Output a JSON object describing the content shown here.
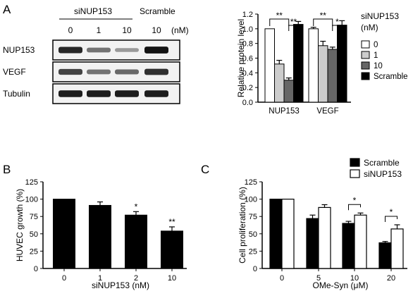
{
  "figure": {
    "panel_labels": [
      "A",
      "B",
      "C"
    ]
  },
  "blot": {
    "group_siNUP153": "siNUP153",
    "group_scramble": "Scramble",
    "lane_labels": [
      "0",
      "1",
      "10",
      "10"
    ],
    "unit": "(nM)",
    "rows": [
      {
        "label": "NUP153",
        "intensities": [
          0.85,
          0.45,
          0.25,
          0.95
        ]
      },
      {
        "label": "VEGF",
        "intensities": [
          0.7,
          0.45,
          0.5,
          0.8
        ]
      },
      {
        "label": "Tubulin",
        "intensities": [
          0.9,
          0.9,
          0.9,
          0.9
        ]
      }
    ]
  },
  "chart_data": [
    {
      "panel": "A",
      "type": "bar",
      "title": "",
      "xlabel": "",
      "ylabel": "Relative protein level",
      "categories": [
        "NUP153",
        "VEGF"
      ],
      "ylim": [
        0,
        1.2
      ],
      "yticks": [
        "0.0",
        "0.2",
        "0.4",
        "0.6",
        "0.8",
        "1.0",
        "1.2"
      ],
      "legend_title": "siNUP153\n(nM)",
      "legend_position": "right",
      "series": [
        {
          "name": "0",
          "color": "#ffffff",
          "values": [
            1.0,
            1.0
          ],
          "errors": [
            0.0,
            0.02
          ]
        },
        {
          "name": "1",
          "color": "#cccccc",
          "values": [
            0.52,
            0.77
          ],
          "errors": [
            0.05,
            0.06
          ]
        },
        {
          "name": "10",
          "color": "#666666",
          "values": [
            0.3,
            0.72
          ],
          "errors": [
            0.03,
            0.03
          ]
        },
        {
          "name": "Scramble",
          "color": "#000000",
          "values": [
            1.06,
            1.05
          ],
          "errors": [
            0.04,
            0.06
          ]
        }
      ],
      "annotations": [
        {
          "text": "**",
          "category": 0,
          "from": 0,
          "to": 2
        },
        {
          "text": "**",
          "category": 0,
          "from": 2,
          "to": 3
        },
        {
          "text": "**",
          "category": 1,
          "from": 0,
          "to": 2
        },
        {
          "text": "*",
          "category": 1,
          "from": 2,
          "to": 3
        }
      ]
    },
    {
      "panel": "B",
      "type": "bar",
      "title": "",
      "xlabel": "siNUP153 (nM)",
      "ylabel": "HUVEC growth (%)",
      "categories": [
        "0",
        "1",
        "2",
        "10"
      ],
      "ylim": [
        0,
        125
      ],
      "yticks": [
        "0",
        "25",
        "50",
        "75",
        "100",
        "125"
      ],
      "series": [
        {
          "name": "",
          "color": "#000000",
          "values": [
            100,
            91,
            77,
            54
          ],
          "errors": [
            0,
            5,
            5,
            6
          ],
          "marks": [
            "",
            "",
            "*",
            "**"
          ]
        }
      ]
    },
    {
      "panel": "C",
      "type": "bar",
      "title": "",
      "xlabel": "OMe-Syn (μM)",
      "ylabel": "Cell proliferation (%)",
      "categories": [
        "0",
        "5",
        "10",
        "20"
      ],
      "ylim": [
        0,
        125
      ],
      "yticks": [
        "0",
        "25",
        "50",
        "75",
        "100",
        "125"
      ],
      "legend_position": "top-right",
      "series": [
        {
          "name": "Scramble",
          "color": "#000000",
          "values": [
            100,
            72,
            65,
            37
          ],
          "errors": [
            0,
            5,
            3,
            2
          ]
        },
        {
          "name": "siNUP153",
          "color": "#ffffff",
          "values": [
            100,
            88,
            77,
            57
          ],
          "errors": [
            0,
            4,
            3,
            6
          ]
        }
      ],
      "annotations": [
        {
          "text": "*",
          "category": 2
        },
        {
          "text": "*",
          "category": 3
        }
      ]
    }
  ]
}
